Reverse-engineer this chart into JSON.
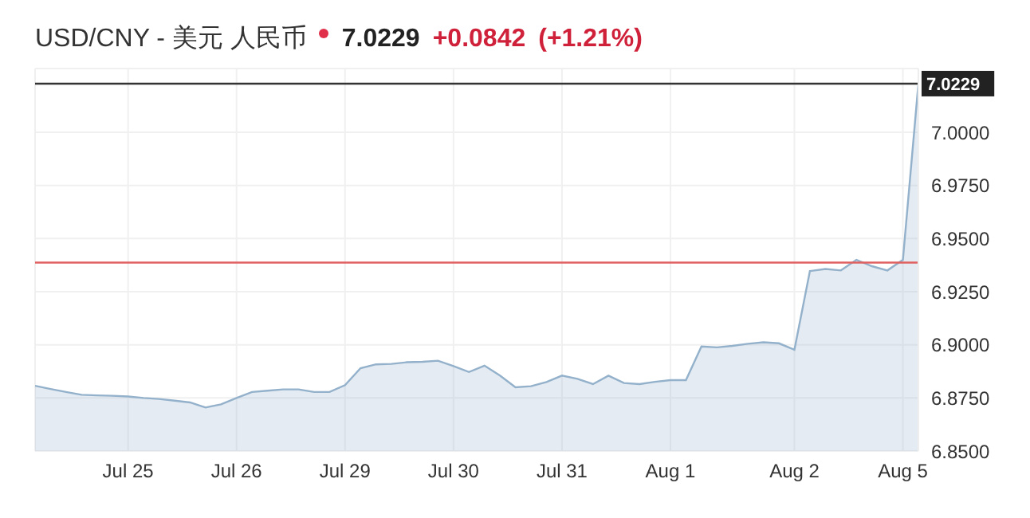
{
  "chart_data": {
    "type": "area",
    "title": "USD/CNY - 美元 人民币",
    "annotations": [
      "7.0229",
      "+0.0842",
      "(+1.21%)"
    ],
    "categories": [
      null,
      null,
      null,
      null,
      null,
      null,
      "Jul 25",
      null,
      null,
      null,
      null,
      null,
      null,
      "Jul 26",
      null,
      null,
      null,
      null,
      null,
      null,
      "Jul 29",
      null,
      null,
      null,
      null,
      null,
      null,
      "Jul 30",
      null,
      null,
      null,
      null,
      null,
      null,
      "Jul 31",
      null,
      null,
      null,
      null,
      null,
      null,
      "Aug 1",
      null,
      null,
      null,
      null,
      null,
      null,
      null,
      "Aug 2",
      null,
      null,
      null,
      null,
      null,
      null,
      "Aug 5",
      null
    ],
    "series": [
      {
        "color": "#93b1cb",
        "values": [
          6.8807,
          6.8792,
          6.8778,
          6.8765,
          6.8762,
          6.876,
          6.8757,
          6.875,
          6.8745,
          6.8737,
          6.8729,
          6.8705,
          6.872,
          6.875,
          6.8778,
          6.8784,
          6.879,
          6.879,
          6.8778,
          6.8778,
          6.881,
          6.889,
          6.8908,
          6.891,
          6.8918,
          6.892,
          6.8925,
          6.89,
          6.8872,
          6.8902,
          6.8855,
          6.88,
          6.8805,
          6.8825,
          6.8855,
          6.884,
          6.8815,
          6.8855,
          6.882,
          6.8815,
          6.8826,
          6.8834,
          6.8834,
          6.8992,
          6.8988,
          6.8995,
          6.9005,
          6.9012,
          6.9007,
          6.8977,
          6.9347,
          6.9357,
          6.935,
          6.94,
          6.937,
          6.935,
          6.94,
          7.0229
        ]
      }
    ],
    "ylim": [
      6.85,
      7.03
    ],
    "yticks": [
      {
        "value": 6.85,
        "label": "6.8500"
      },
      {
        "value": 6.875,
        "label": "6.8750"
      },
      {
        "value": 6.9,
        "label": "6.9000"
      },
      {
        "value": 6.925,
        "label": "6.9250"
      },
      {
        "value": 6.95,
        "label": "6.9500"
      },
      {
        "value": 6.975,
        "label": "6.9750"
      },
      {
        "value": 7.0,
        "label": "7.0000"
      }
    ],
    "ref_lines": [
      {
        "axis": "y",
        "value": 6.9387,
        "color": "#e06060"
      },
      {
        "axis": "y",
        "value": 7.0229,
        "label": "7.0229",
        "color": "#333333"
      }
    ],
    "grid": true
  }
}
